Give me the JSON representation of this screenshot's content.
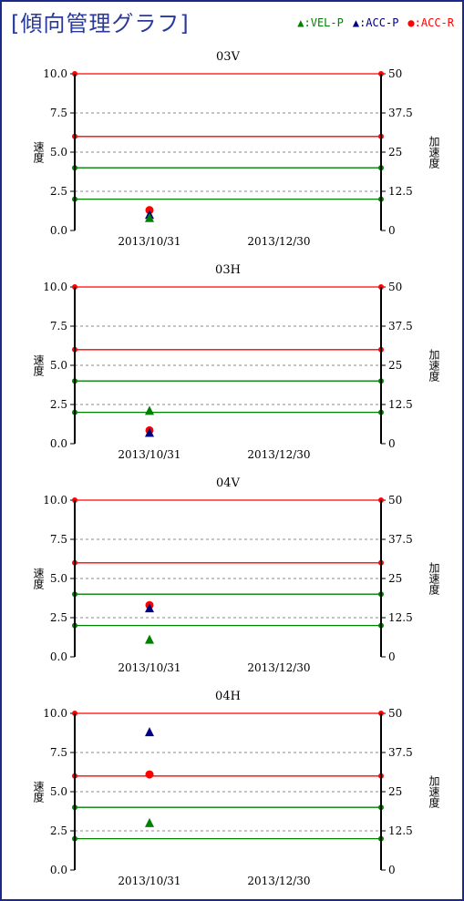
{
  "header": {
    "title": "[傾向管理グラフ]",
    "legend": [
      {
        "label": "▲:VEL-P",
        "color": "#008000"
      },
      {
        "label": "▲:ACC-P",
        "color": "#00007f"
      },
      {
        "label": "●:ACC-R",
        "color": "#ff0000"
      }
    ]
  },
  "chart_data": [
    {
      "type": "scatter",
      "title": "03V",
      "ylabel": "速度",
      "y2label": "加速度",
      "ylim": [
        0,
        10
      ],
      "y2lim": [
        0,
        50
      ],
      "yticks": [
        "0.0",
        "2.5",
        "5.0",
        "7.5",
        "10.0"
      ],
      "y2ticks": [
        "0",
        "12.5",
        "25",
        "37.5",
        "50"
      ],
      "xticks": [
        "2013/10/31",
        "2013/12/30"
      ],
      "thresholds": [
        {
          "axis": "y",
          "value": 10.0,
          "color": "#ff0000"
        },
        {
          "axis": "y",
          "value": 6.0,
          "color": "#ff0000"
        },
        {
          "axis": "y",
          "value": 4.0,
          "color": "#008000"
        },
        {
          "axis": "y",
          "value": 2.0,
          "color": "#008000"
        }
      ],
      "series": [
        {
          "name": "VEL-P",
          "marker": "triangle",
          "color": "#008000",
          "x": [
            "2013/10/31"
          ],
          "y": [
            0.8
          ]
        },
        {
          "name": "ACC-P",
          "marker": "triangle",
          "color": "#00007f",
          "x": [
            "2013/10/31"
          ],
          "y": [
            1.0
          ]
        },
        {
          "name": "ACC-R",
          "marker": "circle",
          "color": "#ff0000",
          "x": [
            "2013/10/31"
          ],
          "y": [
            1.3
          ]
        }
      ]
    },
    {
      "type": "scatter",
      "title": "03H",
      "ylabel": "速度",
      "y2label": "加速度",
      "ylim": [
        0,
        10
      ],
      "y2lim": [
        0,
        50
      ],
      "yticks": [
        "0.0",
        "2.5",
        "5.0",
        "7.5",
        "10.0"
      ],
      "y2ticks": [
        "0",
        "12.5",
        "25",
        "37.5",
        "50"
      ],
      "xticks": [
        "2013/10/31",
        "2013/12/30"
      ],
      "thresholds": [
        {
          "axis": "y",
          "value": 10.0,
          "color": "#ff0000"
        },
        {
          "axis": "y",
          "value": 6.0,
          "color": "#ff0000"
        },
        {
          "axis": "y",
          "value": 4.0,
          "color": "#008000"
        },
        {
          "axis": "y",
          "value": 2.0,
          "color": "#008000"
        }
      ],
      "series": [
        {
          "name": "VEL-P",
          "marker": "triangle",
          "color": "#008000",
          "x": [
            "2013/10/31"
          ],
          "y": [
            2.1
          ]
        },
        {
          "name": "ACC-P",
          "marker": "triangle",
          "color": "#00007f",
          "x": [
            "2013/10/31"
          ],
          "y": [
            0.7
          ]
        },
        {
          "name": "ACC-R",
          "marker": "circle",
          "color": "#ff0000",
          "x": [
            "2013/10/31"
          ],
          "y": [
            0.85
          ]
        }
      ]
    },
    {
      "type": "scatter",
      "title": "04V",
      "ylabel": "速度",
      "y2label": "加速度",
      "ylim": [
        0,
        10
      ],
      "y2lim": [
        0,
        50
      ],
      "yticks": [
        "0.0",
        "2.5",
        "5.0",
        "7.5",
        "10.0"
      ],
      "y2ticks": [
        "0",
        "12.5",
        "25",
        "37.5",
        "50"
      ],
      "xticks": [
        "2013/10/31",
        "2013/12/30"
      ],
      "thresholds": [
        {
          "axis": "y",
          "value": 10.0,
          "color": "#ff0000"
        },
        {
          "axis": "y",
          "value": 6.0,
          "color": "#ff0000"
        },
        {
          "axis": "y",
          "value": 4.0,
          "color": "#008000"
        },
        {
          "axis": "y",
          "value": 2.0,
          "color": "#008000"
        }
      ],
      "series": [
        {
          "name": "VEL-P",
          "marker": "triangle",
          "color": "#008000",
          "x": [
            "2013/10/31"
          ],
          "y": [
            1.1
          ]
        },
        {
          "name": "ACC-P",
          "marker": "triangle",
          "color": "#00007f",
          "x": [
            "2013/10/31"
          ],
          "y": [
            3.1
          ]
        },
        {
          "name": "ACC-R",
          "marker": "circle",
          "color": "#ff0000",
          "x": [
            "2013/10/31"
          ],
          "y": [
            3.3
          ]
        }
      ]
    },
    {
      "type": "scatter",
      "title": "04H",
      "ylabel": "速度",
      "y2label": "加速度",
      "ylim": [
        0,
        10
      ],
      "y2lim": [
        0,
        50
      ],
      "yticks": [
        "0.0",
        "2.5",
        "5.0",
        "7.5",
        "10.0"
      ],
      "y2ticks": [
        "0",
        "12.5",
        "25",
        "37.5",
        "50"
      ],
      "xticks": [
        "2013/10/31",
        "2013/12/30"
      ],
      "thresholds": [
        {
          "axis": "y",
          "value": 10.0,
          "color": "#ff0000"
        },
        {
          "axis": "y",
          "value": 6.0,
          "color": "#ff0000"
        },
        {
          "axis": "y",
          "value": 4.0,
          "color": "#008000"
        },
        {
          "axis": "y",
          "value": 2.0,
          "color": "#008000"
        }
      ],
      "series": [
        {
          "name": "VEL-P",
          "marker": "triangle",
          "color": "#008000",
          "x": [
            "2013/10/31"
          ],
          "y": [
            3.0
          ]
        },
        {
          "name": "ACC-P",
          "marker": "triangle",
          "color": "#00007f",
          "x": [
            "2013/10/31"
          ],
          "y": [
            8.8
          ]
        },
        {
          "name": "ACC-R",
          "marker": "circle",
          "color": "#ff0000",
          "x": [
            "2013/10/31"
          ],
          "y": [
            6.1
          ]
        }
      ]
    }
  ]
}
